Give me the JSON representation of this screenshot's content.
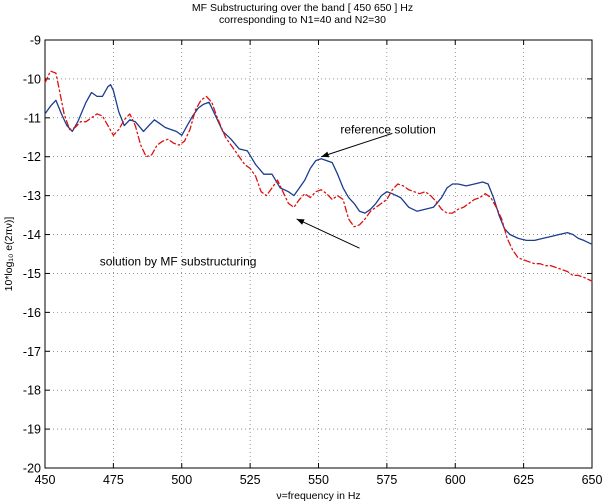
{
  "chart_data": {
    "type": "line",
    "title_lines": [
      "MF Substructuring over the band [ 450 650 ] Hz",
      "corresponding to N1=40 and N2=30"
    ],
    "xlabel": "ν=frequency in Hz",
    "ylabel": "10*log₁₀ e(2πν)]",
    "xlim": [
      450,
      650
    ],
    "ylim": [
      -20,
      -9
    ],
    "xticks": [
      450,
      475,
      500,
      525,
      550,
      575,
      600,
      625,
      650
    ],
    "yticks": [
      -20,
      -19,
      -18,
      -17,
      -16,
      -15,
      -14,
      -13,
      -12,
      -11,
      -10,
      -9
    ],
    "grid": true,
    "series": [
      {
        "name": "reference solution",
        "color": "#1a3d8f",
        "style": "solid",
        "points": [
          [
            450,
            -10.9
          ],
          [
            452,
            -10.7
          ],
          [
            454,
            -10.55
          ],
          [
            456,
            -10.9
          ],
          [
            458,
            -11.2
          ],
          [
            460,
            -11.35
          ],
          [
            462,
            -11.1
          ],
          [
            465,
            -10.6
          ],
          [
            467,
            -10.35
          ],
          [
            469,
            -10.45
          ],
          [
            471,
            -10.45
          ],
          [
            473,
            -10.2
          ],
          [
            474,
            -10.15
          ],
          [
            475,
            -10.3
          ],
          [
            477,
            -10.85
          ],
          [
            479,
            -11.2
          ],
          [
            481,
            -11.05
          ],
          [
            483,
            -11.1
          ],
          [
            486,
            -11.35
          ],
          [
            488,
            -11.2
          ],
          [
            490,
            -11.05
          ],
          [
            492,
            -11.15
          ],
          [
            494,
            -11.25
          ],
          [
            496,
            -11.3
          ],
          [
            498,
            -11.35
          ],
          [
            500,
            -11.45
          ],
          [
            502,
            -11.2
          ],
          [
            504,
            -10.95
          ],
          [
            506,
            -10.75
          ],
          [
            508,
            -10.65
          ],
          [
            510,
            -10.6
          ],
          [
            512,
            -10.9
          ],
          [
            515,
            -11.35
          ],
          [
            518,
            -11.55
          ],
          [
            521,
            -11.8
          ],
          [
            524,
            -11.85
          ],
          [
            527,
            -12.2
          ],
          [
            530,
            -12.45
          ],
          [
            533,
            -12.45
          ],
          [
            536,
            -12.8
          ],
          [
            539,
            -12.9
          ],
          [
            541,
            -13.0
          ],
          [
            543,
            -12.8
          ],
          [
            545,
            -12.6
          ],
          [
            547,
            -12.3
          ],
          [
            549,
            -12.1
          ],
          [
            551,
            -12.05
          ],
          [
            553,
            -12.1
          ],
          [
            555,
            -12.15
          ],
          [
            557,
            -12.45
          ],
          [
            559,
            -12.8
          ],
          [
            561,
            -13.05
          ],
          [
            563,
            -13.2
          ],
          [
            565,
            -13.4
          ],
          [
            567,
            -13.45
          ],
          [
            569,
            -13.35
          ],
          [
            571,
            -13.2
          ],
          [
            573,
            -13.0
          ],
          [
            575,
            -12.9
          ],
          [
            577,
            -12.95
          ],
          [
            580,
            -13.05
          ],
          [
            583,
            -13.3
          ],
          [
            586,
            -13.4
          ],
          [
            589,
            -13.35
          ],
          [
            592,
            -13.3
          ],
          [
            595,
            -13.05
          ],
          [
            597,
            -12.8
          ],
          [
            599,
            -12.7
          ],
          [
            601,
            -12.7
          ],
          [
            604,
            -12.75
          ],
          [
            607,
            -12.7
          ],
          [
            610,
            -12.65
          ],
          [
            612,
            -12.7
          ],
          [
            614,
            -13.05
          ],
          [
            616,
            -13.5
          ],
          [
            618,
            -13.85
          ],
          [
            620,
            -14.0
          ],
          [
            623,
            -14.1
          ],
          [
            626,
            -14.15
          ],
          [
            629,
            -14.15
          ],
          [
            632,
            -14.1
          ],
          [
            635,
            -14.05
          ],
          [
            638,
            -14.0
          ],
          [
            641,
            -13.95
          ],
          [
            643,
            -14.0
          ],
          [
            645,
            -14.1
          ],
          [
            647,
            -14.15
          ],
          [
            650,
            -14.25
          ]
        ]
      },
      {
        "name": "solution by MF substructuring",
        "color": "#dd1111",
        "style": "dashdot",
        "points": [
          [
            450,
            -10.1
          ],
          [
            452,
            -9.8
          ],
          [
            454,
            -9.85
          ],
          [
            455,
            -10.2
          ],
          [
            457,
            -10.9
          ],
          [
            459,
            -11.3
          ],
          [
            461,
            -11.25
          ],
          [
            463,
            -11.1
          ],
          [
            465,
            -11.1
          ],
          [
            467,
            -11.0
          ],
          [
            469,
            -10.9
          ],
          [
            471,
            -10.95
          ],
          [
            473,
            -11.2
          ],
          [
            475,
            -11.45
          ],
          [
            477,
            -11.3
          ],
          [
            479,
            -11.05
          ],
          [
            481,
            -10.9
          ],
          [
            483,
            -11.2
          ],
          [
            485,
            -11.7
          ],
          [
            487,
            -12.0
          ],
          [
            489,
            -11.95
          ],
          [
            491,
            -11.7
          ],
          [
            493,
            -11.6
          ],
          [
            495,
            -11.55
          ],
          [
            497,
            -11.65
          ],
          [
            499,
            -11.7
          ],
          [
            501,
            -11.6
          ],
          [
            503,
            -11.3
          ],
          [
            505,
            -10.8
          ],
          [
            507,
            -10.55
          ],
          [
            509,
            -10.45
          ],
          [
            511,
            -10.6
          ],
          [
            513,
            -11.0
          ],
          [
            516,
            -11.5
          ],
          [
            519,
            -11.8
          ],
          [
            521,
            -12.0
          ],
          [
            523,
            -12.2
          ],
          [
            525,
            -12.3
          ],
          [
            527,
            -12.5
          ],
          [
            529,
            -12.9
          ],
          [
            531,
            -13.0
          ],
          [
            533,
            -12.8
          ],
          [
            535,
            -12.6
          ],
          [
            537,
            -12.9
          ],
          [
            539,
            -13.2
          ],
          [
            541,
            -13.3
          ],
          [
            543,
            -13.1
          ],
          [
            545,
            -12.95
          ],
          [
            547,
            -13.05
          ],
          [
            549,
            -12.9
          ],
          [
            551,
            -12.85
          ],
          [
            553,
            -12.95
          ],
          [
            555,
            -13.1
          ],
          [
            557,
            -13.0
          ],
          [
            559,
            -13.1
          ],
          [
            561,
            -13.6
          ],
          [
            563,
            -13.8
          ],
          [
            565,
            -13.75
          ],
          [
            567,
            -13.6
          ],
          [
            569,
            -13.4
          ],
          [
            571,
            -13.3
          ],
          [
            573,
            -13.2
          ],
          [
            575,
            -13.1
          ],
          [
            577,
            -12.85
          ],
          [
            579,
            -12.7
          ],
          [
            581,
            -12.75
          ],
          [
            583,
            -12.85
          ],
          [
            585,
            -12.9
          ],
          [
            587,
            -12.95
          ],
          [
            589,
            -12.9
          ],
          [
            591,
            -13.0
          ],
          [
            593,
            -13.15
          ],
          [
            595,
            -13.35
          ],
          [
            597,
            -13.45
          ],
          [
            599,
            -13.45
          ],
          [
            601,
            -13.35
          ],
          [
            603,
            -13.3
          ],
          [
            605,
            -13.2
          ],
          [
            607,
            -13.1
          ],
          [
            609,
            -13.05
          ],
          [
            611,
            -12.95
          ],
          [
            613,
            -13.05
          ],
          [
            615,
            -13.3
          ],
          [
            617,
            -13.6
          ],
          [
            619,
            -14.1
          ],
          [
            621,
            -14.4
          ],
          [
            623,
            -14.6
          ],
          [
            625,
            -14.65
          ],
          [
            627,
            -14.7
          ],
          [
            629,
            -14.75
          ],
          [
            631,
            -14.75
          ],
          [
            633,
            -14.8
          ],
          [
            635,
            -14.8
          ],
          [
            637,
            -14.85
          ],
          [
            639,
            -14.9
          ],
          [
            641,
            -14.95
          ],
          [
            643,
            -15.05
          ],
          [
            645,
            -15.05
          ],
          [
            647,
            -15.1
          ],
          [
            650,
            -15.2
          ]
        ]
      }
    ],
    "annotations": [
      {
        "text": "reference solution",
        "tx": 558,
        "ty": -11.4,
        "ax": 577,
        "ay": -11.4,
        "bx": 551,
        "by": -12.0
      },
      {
        "text": "solution by MF substructuring",
        "tx": 470,
        "ty": -14.8,
        "ax": 565,
        "ay": -14.35,
        "bx": 542,
        "by": -13.6
      }
    ]
  }
}
